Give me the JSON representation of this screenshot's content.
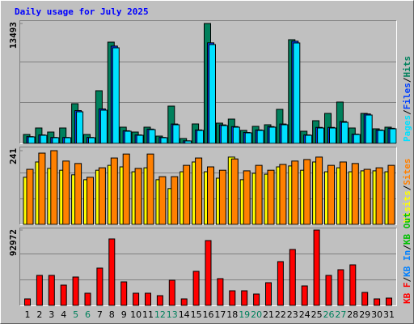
{
  "title": "Daily usage for July 2025",
  "legend_separator": "/",
  "chart_data": [
    {
      "type": "bar",
      "ylim": [
        0,
        13493
      ],
      "yticks": [
        13493
      ],
      "grid": true,
      "series": [
        {
          "name": "Hits",
          "color": "#00805c",
          "values": [
            1003,
            1732,
            1276,
            1732,
            4467,
            1003,
            5926,
            11396,
            1823,
            1276,
            1823,
            820,
            4194,
            547,
            2188,
            13493,
            2279,
            2735,
            1459,
            1915,
            2097,
            3829,
            11670,
            1367,
            2553,
            3373,
            4650,
            1732,
            3373,
            1641,
            1823
          ]
        },
        {
          "name": "Files",
          "color": "#0040ff",
          "values": [
            760,
            950,
            670,
            670,
            3690,
            670,
            3880,
            10950,
            1420,
            950,
            1610,
            670,
            2180,
            290,
            1510,
            11320,
            2080,
            1890,
            1230,
            1510,
            1890,
            2180,
            11500,
            950,
            1800,
            1800,
            2460,
            1040,
            3310,
            1510,
            1700
          ]
        },
        {
          "name": "Pages",
          "color": "#00e0ff",
          "values": [
            729,
            912,
            638,
            638,
            3556,
            638,
            3738,
            10758,
            1368,
            912,
            1550,
            638,
            2097,
            274,
            1459,
            11123,
            2006,
            1823,
            1185,
            1459,
            1823,
            2097,
            11305,
            912,
            1732,
            1732,
            2370,
            1003,
            3191,
            1459,
            1641
          ]
        }
      ]
    },
    {
      "type": "bar",
      "ylim": [
        0,
        241
      ],
      "yticks": [
        241
      ],
      "grid": true,
      "series": [
        {
          "name": "Visits",
          "color": "#ffff00",
          "values": [
            154,
            204,
            183,
            177,
            162,
            146,
            177,
            193,
            188,
            172,
            185,
            146,
            117,
            172,
            204,
            172,
            151,
            220,
            146,
            167,
            164,
            188,
            191,
            177,
            204,
            172,
            185,
            172,
            175,
            175,
            172
          ]
        },
        {
          "name": "Sites",
          "color": "#ff8000",
          "values": [
            180,
            233,
            241,
            207,
            199,
            154,
            185,
            217,
            230,
            183,
            230,
            156,
            156,
            193,
            217,
            188,
            177,
            214,
            175,
            193,
            177,
            196,
            207,
            212,
            220,
            193,
            204,
            199,
            180,
            185,
            193
          ]
        }
      ]
    },
    {
      "type": "bar",
      "ylim": [
        0,
        92972
      ],
      "yticks": [
        92972
      ],
      "grid": true,
      "categories": [
        "1",
        "2",
        "3",
        "4",
        "5",
        "6",
        "7",
        "8",
        "9",
        "10",
        "11",
        "12",
        "13",
        "14",
        "15",
        "16",
        "17",
        "18",
        "19",
        "20",
        "21",
        "22",
        "23",
        "24",
        "25",
        "26",
        "27",
        "28",
        "29",
        "30",
        "31"
      ],
      "category_colors": [
        "#000000",
        "#000000",
        "#000000",
        "#000000",
        "#00805c",
        "#00805c",
        "#000000",
        "#000000",
        "#000000",
        "#000000",
        "#000000",
        "#00805c",
        "#00805c",
        "#000000",
        "#000000",
        "#000000",
        "#000000",
        "#000000",
        "#00805c",
        "#00805c",
        "#000000",
        "#000000",
        "#000000",
        "#000000",
        "#000000",
        "#00805c",
        "#00805c",
        "#000000",
        "#000000",
        "#000000",
        "#000000"
      ],
      "series": [
        {
          "name": "KB F",
          "color": "#ff0000",
          "values": [
            8000,
            37000,
            37000,
            25000,
            35000,
            15000,
            46000,
            82000,
            29000,
            15000,
            15000,
            12000,
            31000,
            8000,
            42000,
            80000,
            33000,
            18000,
            18000,
            14000,
            28000,
            54000,
            69000,
            24000,
            92972,
            37000,
            44000,
            50000,
            16000,
            8000,
            9000
          ]
        }
      ],
      "extra_legend": [
        {
          "name": "KB In",
          "color": "#0080ff"
        },
        {
          "name": "KB Out",
          "color": "#00c000"
        }
      ]
    }
  ]
}
